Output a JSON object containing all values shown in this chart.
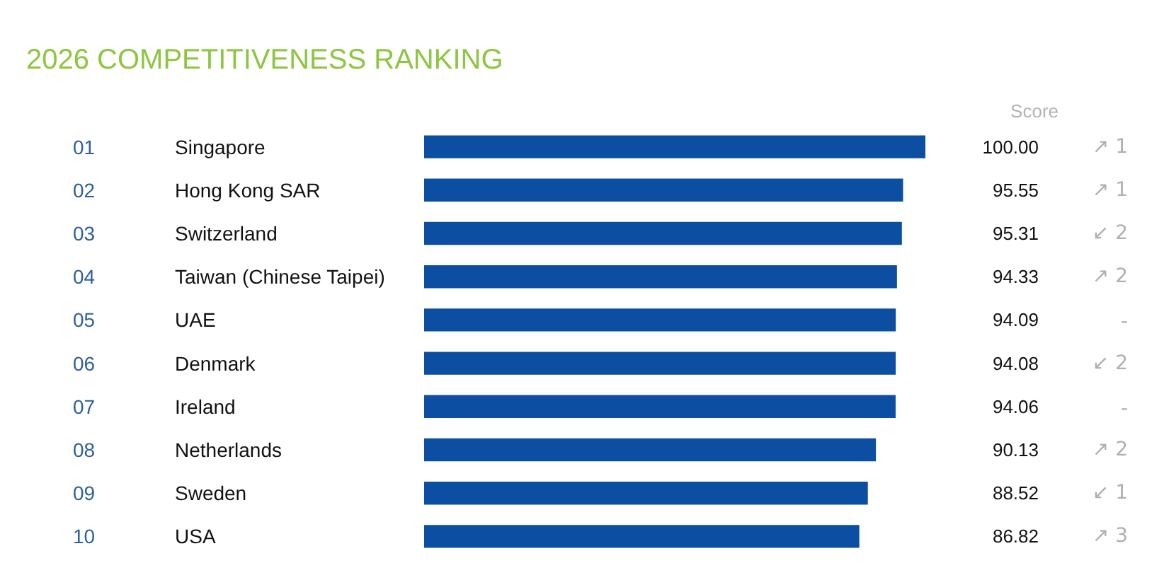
{
  "chart_data": {
    "type": "bar",
    "orientation": "horizontal",
    "title": "2026 COMPETITIVENESS RANKING",
    "categories": [
      "Singapore",
      "Hong Kong SAR",
      "Switzerland",
      "Taiwan (Chinese Taipei)",
      "UAE",
      "Denmark",
      "Ireland",
      "Netherlands",
      "Sweden",
      "USA"
    ],
    "values": [
      100.0,
      95.55,
      95.31,
      94.33,
      94.09,
      94.08,
      94.06,
      90.13,
      88.52,
      86.82
    ],
    "color": "#0b4ea2",
    "value_labels": [
      "100.00",
      "95.55",
      "95.31",
      "94.33",
      "94.09",
      "94.08",
      "94.06",
      "90.13",
      "88.52",
      "86.82"
    ],
    "annotations": [
      "Score",
      "01",
      "02",
      "03",
      "04",
      "05",
      "06",
      "07",
      "08",
      "09",
      "10",
      "↗ 1",
      "↗ 1",
      "↙ 2",
      "↗ 2",
      "-",
      "↙ 2",
      "-",
      "↗ 2",
      "↙ 1",
      "↗ 3"
    ]
  }
}
